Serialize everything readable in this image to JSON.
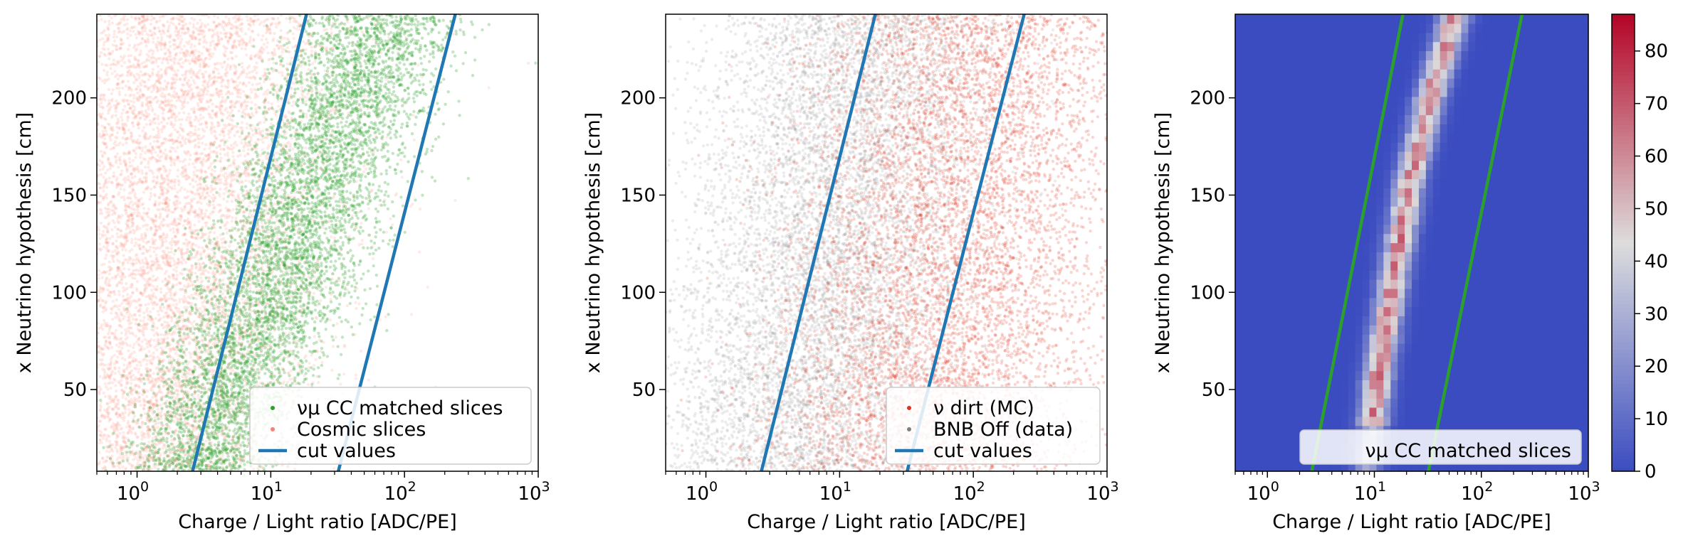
{
  "colors": {
    "numu": "#2ca02c",
    "cosmic": "#fa8072",
    "dirt": "#e0301e",
    "bnb_off": "#808080",
    "cut_line": "#1f77b4",
    "cut_line_heatmap": "#2ca02c",
    "heatmap_low": "#3b4cc0",
    "heatmap_mid": "#dddddd",
    "heatmap_high": "#b40426"
  },
  "chart_data": [
    {
      "type": "scatter",
      "xlabel": "Charge / Light ratio [ADC/PE]",
      "ylabel": "x Neutrino hypothesis [cm]",
      "xscale": "log",
      "xlim": [
        0.5,
        1000
      ],
      "ylim": [
        8,
        243
      ],
      "xticks": [
        {
          "value": 1,
          "base": "10",
          "exp": "0"
        },
        {
          "value": 10,
          "base": "10",
          "exp": "1"
        },
        {
          "value": 100,
          "base": "10",
          "exp": "2"
        },
        {
          "value": 1000,
          "base": "10",
          "exp": "3"
        }
      ],
      "yticks": [
        {
          "value": 50,
          "label": "50"
        },
        {
          "value": 100,
          "label": "100"
        },
        {
          "value": 150,
          "label": "150"
        },
        {
          "value": 200,
          "label": "200"
        }
      ],
      "legend_position": "lower-right",
      "series": [
        {
          "name": "νμ CC matched slices",
          "kind": "points",
          "color": "#2ca02c",
          "trend_x_at_y0": 2.5,
          "trend_x_at_y243": 70,
          "spread_decades": 0.3
        },
        {
          "name": "Cosmic slices",
          "kind": "points",
          "color": "#fa8072",
          "trend_x_at_y0": 1.0,
          "trend_x_at_y243": 2.5,
          "spread_decades": 0.6
        }
      ],
      "cut_lines": [
        {
          "name": "cut values",
          "points": [
            [
              2.6,
              8
            ],
            [
              18.5,
              243
            ]
          ]
        },
        {
          "name": "cut values",
          "points": [
            [
              32,
              8
            ],
            [
              240,
              243
            ]
          ]
        }
      ]
    },
    {
      "type": "scatter",
      "xlabel": "Charge / Light ratio [ADC/PE]",
      "ylabel": "x Neutrino hypothesis [cm]",
      "xscale": "log",
      "xlim": [
        0.5,
        1000
      ],
      "ylim": [
        8,
        243
      ],
      "xticks": [
        {
          "value": 1,
          "base": "10",
          "exp": "0"
        },
        {
          "value": 10,
          "base": "10",
          "exp": "1"
        },
        {
          "value": 100,
          "base": "10",
          "exp": "2"
        },
        {
          "value": 1000,
          "base": "10",
          "exp": "3"
        }
      ],
      "yticks": [
        {
          "value": 50,
          "label": "50"
        },
        {
          "value": 100,
          "label": "100"
        },
        {
          "value": 150,
          "label": "150"
        },
        {
          "value": 200,
          "label": "200"
        }
      ],
      "legend_position": "lower-right",
      "series": [
        {
          "name": "ν dirt (MC)",
          "kind": "points",
          "color": "#e0301e",
          "trend_x_at_y0": 40,
          "trend_x_at_y243": 120,
          "spread_decades": 0.6
        },
        {
          "name": "BNB Off (data)",
          "kind": "points",
          "color": "#808080",
          "trend_x_at_y0": 4,
          "trend_x_at_y243": 15,
          "spread_decades": 0.55
        }
      ],
      "cut_lines": [
        {
          "name": "cut values",
          "points": [
            [
              2.6,
              8
            ],
            [
              18.5,
              243
            ]
          ]
        },
        {
          "name": "cut values",
          "points": [
            [
              32,
              8
            ],
            [
              240,
              243
            ]
          ]
        }
      ]
    },
    {
      "type": "heatmap",
      "xlabel": "Charge / Light ratio [ADC/PE]",
      "ylabel": "x Neutrino hypothesis [cm]",
      "xscale": "log",
      "xlim": [
        0.5,
        1000
      ],
      "ylim": [
        8,
        243
      ],
      "xticks": [
        {
          "value": 1,
          "base": "10",
          "exp": "0"
        },
        {
          "value": 10,
          "base": "10",
          "exp": "1"
        },
        {
          "value": 100,
          "base": "10",
          "exp": "2"
        },
        {
          "value": 1000,
          "base": "10",
          "exp": "3"
        }
      ],
      "yticks": [
        {
          "value": 50,
          "label": "50"
        },
        {
          "value": 100,
          "label": "100"
        },
        {
          "value": 150,
          "label": "150"
        },
        {
          "value": 200,
          "label": "200"
        }
      ],
      "legend_position": "lower-right",
      "series": [
        {
          "name": "νμ CC matched slices",
          "kind": "counts",
          "ridge": [
            [
              10,
              40
            ],
            [
              11,
              60
            ],
            [
              13,
              85
            ],
            [
              17,
              125
            ],
            [
              22,
              160
            ],
            [
              33,
              200
            ],
            [
              55,
              240
            ]
          ],
          "peak_count": 86
        }
      ],
      "cut_lines": [
        {
          "name": "cut values",
          "points": [
            [
              2.6,
              8
            ],
            [
              18.5,
              243
            ]
          ]
        },
        {
          "name": "cut values",
          "points": [
            [
              32,
              8
            ],
            [
              240,
              243
            ]
          ]
        }
      ],
      "colorbar": {
        "min": 0,
        "max": 87,
        "ticks": [
          0,
          10,
          20,
          30,
          40,
          50,
          60,
          70,
          80
        ]
      }
    }
  ]
}
